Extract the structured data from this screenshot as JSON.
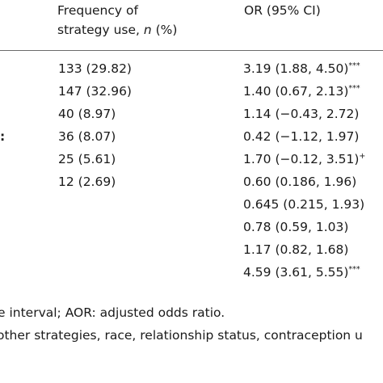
{
  "table": {
    "headers": {
      "frequency_line1": "Frequency of",
      "frequency_line2_prefix": "strategy use, ",
      "frequency_line2_italic": "n",
      "frequency_line2_suffix": " (%)",
      "or": "OR (95% CI)"
    },
    "stub_fragment": ":",
    "rows": [
      {
        "frequency": "133 (29.82)",
        "or": "3.19 (1.88, 4.50)",
        "marker": "***"
      },
      {
        "frequency": "147 (32.96)",
        "or": "1.40 (0.67, 2.13)",
        "marker": "***"
      },
      {
        "frequency": "40 (8.97)",
        "or": "1.14 (−0.43, 2.72)",
        "marker": ""
      },
      {
        "frequency": "36 (8.07)",
        "or": "0.42 (−1.12, 1.97)",
        "marker": ""
      },
      {
        "frequency": "25 (5.61)",
        "or": "1.70 (−0.12, 3.51)",
        "marker": "+"
      },
      {
        "frequency": "12 (2.69)",
        "or": "0.60 (0.186, 1.96)",
        "marker": ""
      },
      {
        "frequency": "",
        "or": "0.645 (0.215, 1.93)",
        "marker": ""
      },
      {
        "frequency": "",
        "or": "0.78 (0.59, 1.03)",
        "marker": ""
      },
      {
        "frequency": "",
        "or": "1.17 (0.82, 1.68)",
        "marker": ""
      },
      {
        "frequency": "",
        "or": "4.59 (3.61, 5.55)",
        "marker": "***"
      }
    ]
  },
  "footnotes": {
    "line1": "e interval; AOR: adjusted odds ratio.",
    "line2": "other strategies, race, relationship status, contraception u"
  }
}
